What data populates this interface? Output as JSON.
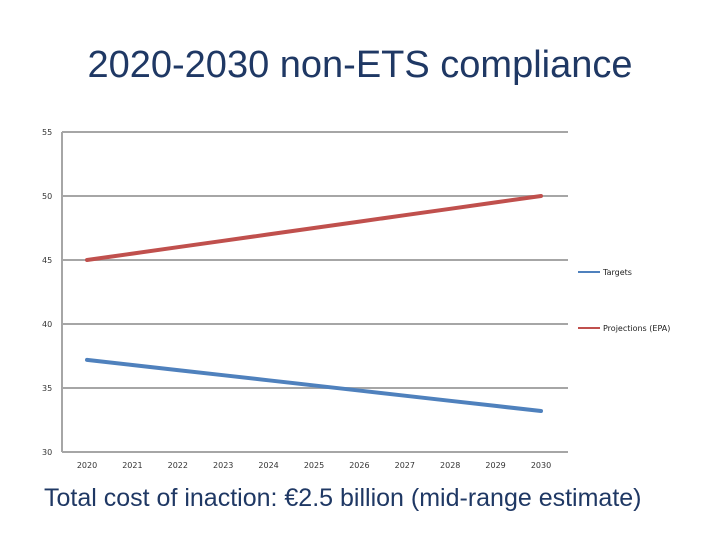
{
  "title": "2020-2030 non-ETS compliance",
  "footer": "Total cost of inaction: €2.5 billion (mid-range estimate)",
  "colors": {
    "title": "#1f3864",
    "gridline": "#a6a6a6",
    "targets": "#4f81bd",
    "projections": "#c0504d"
  },
  "chart_data": {
    "type": "line",
    "title": "2020-2030 non-ETS compliance",
    "xlabel": "",
    "ylabel": "",
    "x": [
      2020,
      2021,
      2022,
      2023,
      2024,
      2025,
      2026,
      2027,
      2028,
      2029,
      2030
    ],
    "x_tick_labels": [
      "2020",
      "2021",
      "2022",
      "2023",
      "2024",
      "2025",
      "2026",
      "2027",
      "2028",
      "2029",
      "2030"
    ],
    "ylim": [
      30,
      55
    ],
    "y_ticks": [
      30,
      35,
      40,
      45,
      50,
      55
    ],
    "grid": true,
    "legend_position": "right",
    "series": [
      {
        "name": "Targets",
        "color": "#4f81bd",
        "values": [
          37.2,
          36.8,
          36.4,
          36.0,
          35.6,
          35.2,
          34.8,
          34.4,
          34.0,
          33.6,
          33.2
        ]
      },
      {
        "name": "Projections (EPA)",
        "color": "#c0504d",
        "values": [
          45.0,
          45.5,
          46.0,
          46.5,
          47.0,
          47.5,
          48.0,
          48.5,
          49.0,
          49.5,
          50.0
        ]
      }
    ]
  }
}
